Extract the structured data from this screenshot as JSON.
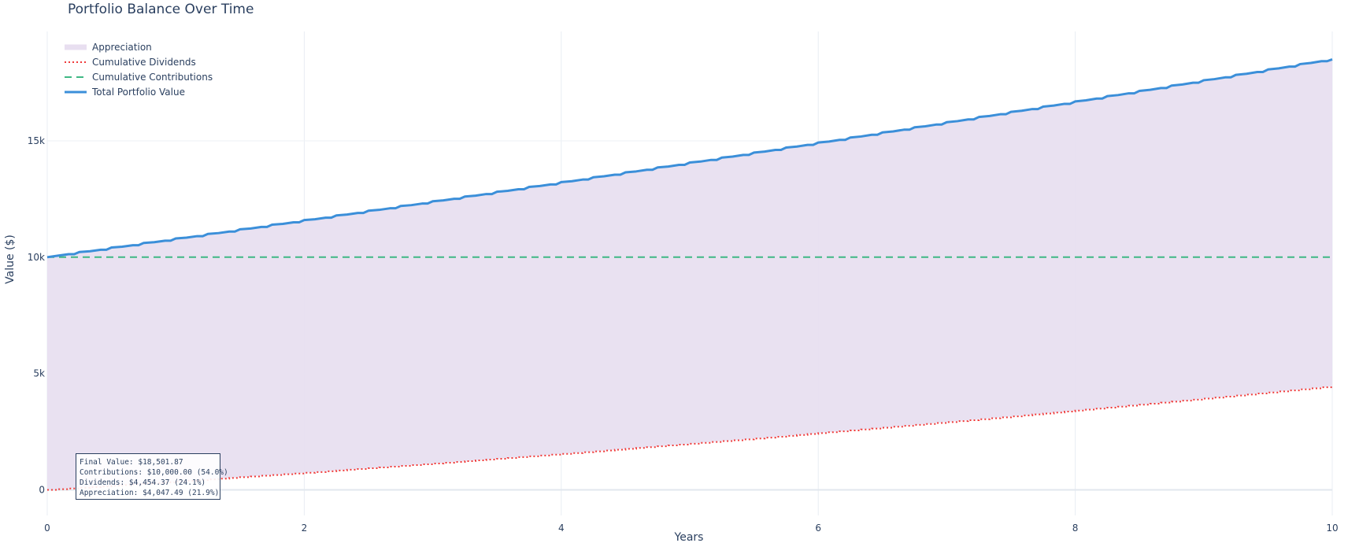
{
  "chart_data": {
    "type": "area",
    "title": "Portfolio Balance Over Time",
    "xlabel": "Years",
    "ylabel": "Value ($)",
    "xlim": [
      0,
      10
    ],
    "ylim": [
      -1100,
      19700
    ],
    "x_ticks": [
      0,
      2,
      4,
      6,
      8,
      10
    ],
    "x_tick_labels": [
      "0",
      "2",
      "4",
      "6",
      "8",
      "10"
    ],
    "y_ticks": [
      0,
      5000,
      10000,
      15000
    ],
    "y_tick_labels": [
      "0",
      "5k",
      "10k",
      "15k"
    ],
    "grid": true,
    "legend_position": "top-left",
    "months": 120,
    "series": [
      {
        "name": "Appreciation",
        "style": "filled-area",
        "color": "#e8dff0",
        "description_of_shape": "filled between Cumulative Dividends and Total Portfolio Value",
        "start_value": 0,
        "end_value": 4047.49
      },
      {
        "name": "Cumulative Dividends",
        "style": "dotted",
        "color": "#ef3a3a",
        "start_value": 0,
        "end_value": 4454.37,
        "step_every_months": 1
      },
      {
        "name": "Cumulative Contributions",
        "style": "dashed",
        "color": "#3fb884",
        "constant_value": 10000
      },
      {
        "name": "Total Portfolio Value",
        "style": "solid",
        "color": "#3b8fd9",
        "start_value": 10000,
        "end_value": 18501.87
      }
    ],
    "annotation": {
      "lines": [
        "Final Value: $18,501.87",
        "Contributions: $10,000.00 (54.0%)",
        "Dividends: $4,454.37 (24.1%)",
        "Appreciation: $4,047.49 (21.9%)"
      ]
    }
  }
}
